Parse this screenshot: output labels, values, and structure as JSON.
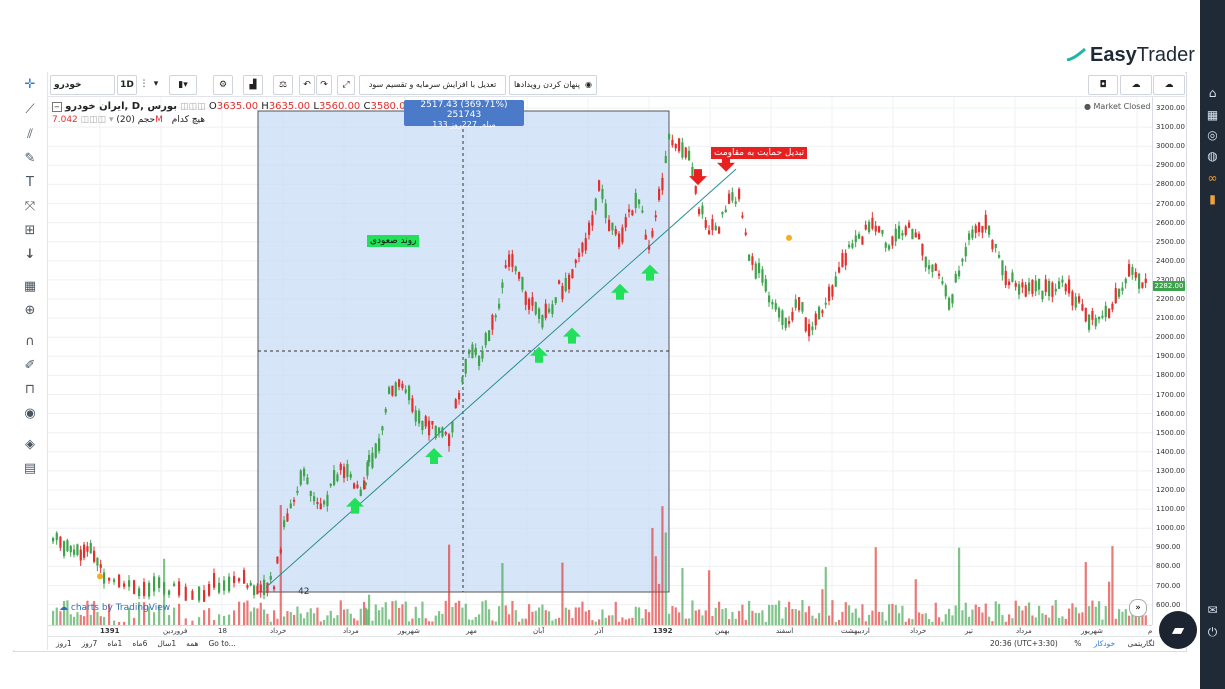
{
  "logo": {
    "text_a": "Easy",
    "text_b": "Trader"
  },
  "toolbar": {
    "symbol": "خودرو",
    "interval": "1D",
    "adjust_label": "تعدیل با افزایش سرمایه و تقسیم سود نقدی",
    "hide_events_label": "پنهان کردن رویدادها"
  },
  "legend": {
    "title": "ایران خودرو, D, بورس",
    "o_label": "O",
    "o_value": "3635.00",
    "h_label": "H",
    "h_value": "3635.00",
    "l_label": "L",
    "l_value": "3560.00",
    "c_label": "C",
    "c_value": "3580.00",
    "volume_label": "حجم (20)",
    "volume_value": "7.042M",
    "none_label": "هیچ کدام"
  },
  "measure_tooltip": {
    "line1": "2517.43 (369.71%) 251743",
    "line2": "133 میله, 227روز"
  },
  "annotations": {
    "uptrend": "روند صعودی",
    "support_to_resistance": "تبدیل حمایت به مقاومت"
  },
  "market_status": "Market Closed",
  "current_price": "2282.00",
  "price_ticks": [
    "3200.00",
    "3100.00",
    "3000.00",
    "2900.00",
    "2800.00",
    "2700.00",
    "2600.00",
    "2500.00",
    "2400.00",
    "2300.00",
    "2200.00",
    "2100.00",
    "2000.00",
    "1900.00",
    "1800.00",
    "1700.00",
    "1600.00",
    "1500.00",
    "1400.00",
    "1300.00",
    "1200.00",
    "1100.00",
    "1000.00",
    "900.00",
    "800.00",
    "700.00",
    "600.00"
  ],
  "time_labels": [
    "1391",
    "فروردین",
    "18",
    "خرداد",
    "مرداد",
    "شهریور",
    "مهر",
    "آبان",
    "آذر",
    "1392",
    "بهمن",
    "اسفند",
    "اردیبهشت",
    "خرداد",
    "تیر",
    "مرداد",
    "شهریور",
    "م"
  ],
  "volume_marker": "42",
  "watermark": "charts by TradingView",
  "bottom_ranges": [
    "همه",
    "1سال",
    "6ماه",
    "1ماه",
    "7روز",
    "1روز",
    "Go to..."
  ],
  "bottom_right": {
    "clock": "20:36 (UTC+3:30)",
    "percent": "%",
    "log": "لگاریتمی",
    "auto": "خودکار"
  },
  "colors": {
    "up": "#3fa34d",
    "down": "#e0312f",
    "selection": "#c9dcf6",
    "accent_green": "#22e05a",
    "sidebar": "#1f2a36"
  }
}
